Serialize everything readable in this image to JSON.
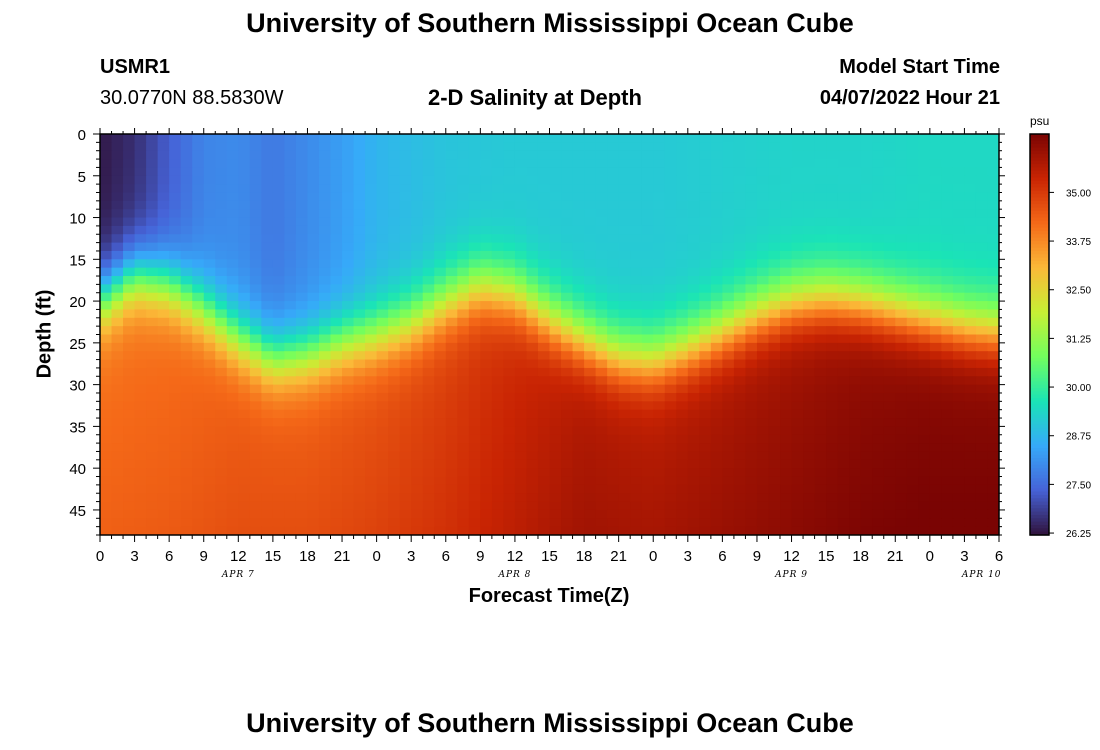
{
  "header": {
    "title": "University of Southern Mississippi Ocean Cube",
    "station_id": "USMR1",
    "location": "30.0770N  88.5830W",
    "plot_title": "2-D Salinity at Depth",
    "model_start_label": "Model Start Time",
    "model_start_value": "04/07/2022 Hour 21"
  },
  "footer": {
    "title": "University of Southern Mississippi Ocean Cube"
  },
  "chart_data": {
    "type": "heatmap",
    "title": "2-D Salinity at Depth",
    "xlabel": "Forecast Time(Z)",
    "ylabel": "Depth (ft)",
    "x_range_hours": [
      0,
      78
    ],
    "x_tick_labels": [
      "0",
      "3",
      "6",
      "9",
      "12",
      "15",
      "18",
      "21",
      "0",
      "3",
      "6",
      "9",
      "12",
      "15",
      "18",
      "21",
      "0",
      "3",
      "6",
      "9",
      "12",
      "15",
      "18",
      "21",
      "0",
      "3",
      "6"
    ],
    "date_labels": [
      {
        "label": "APR 7",
        "hour": 12
      },
      {
        "label": "APR 8",
        "hour": 36
      },
      {
        "label": "APR 9",
        "hour": 60
      },
      {
        "label": "APR 10",
        "hour": 76.5
      }
    ],
    "y_range_ft": [
      0,
      48
    ],
    "y_tick_labels": [
      "0",
      "5",
      "10",
      "15",
      "20",
      "25",
      "30",
      "35",
      "40",
      "45"
    ],
    "halocline_depth_ft": {
      "hours": [
        0,
        3,
        6,
        9,
        12,
        15,
        18,
        21,
        24,
        27,
        30,
        33,
        36,
        39,
        42,
        45,
        48,
        51,
        54,
        57,
        60,
        63,
        66,
        69,
        72,
        75,
        78
      ],
      "depth": [
        20.5,
        17.5,
        18.5,
        21.5,
        25,
        27.5,
        27,
        25.5,
        24.5,
        23,
        20.5,
        18.5,
        19.5,
        22.5,
        25,
        27,
        27.5,
        26,
        24,
        22,
        20.5,
        20,
        20.5,
        21.5,
        22.5,
        23.5,
        24
      ]
    },
    "surface_salinity_psu": {
      "hours": [
        0,
        3,
        6,
        9,
        12,
        15,
        18,
        21,
        24,
        30,
        36,
        42,
        48,
        54,
        60,
        66,
        72,
        78
      ],
      "values": [
        26.3,
        26.6,
        27.3,
        27.9,
        28.0,
        27.7,
        28.0,
        28.3,
        28.7,
        29.0,
        29.1,
        29.1,
        29.1,
        29.2,
        29.3,
        29.3,
        29.4,
        29.4
      ]
    },
    "bottom_salinity_psu": {
      "hours": [
        0,
        6,
        12,
        18,
        24,
        30,
        36,
        42,
        48,
        54,
        60,
        66,
        72,
        78
      ],
      "values": [
        34.0,
        34.1,
        34.3,
        34.3,
        34.5,
        34.8,
        35.2,
        35.6,
        35.5,
        35.7,
        35.9,
        36.1,
        36.2,
        36.2
      ]
    },
    "colorbar": {
      "unit": "psu",
      "min": 26.2,
      "max": 36.5,
      "tick_values": [
        26.25,
        27.5,
        28.75,
        30.0,
        31.25,
        32.5,
        33.75,
        35.0
      ],
      "tick_labels": [
        "26.25",
        "27.50",
        "28.75",
        "30.00",
        "31.25",
        "32.50",
        "33.75",
        "35.00"
      ],
      "colors": [
        "#30123b",
        "#4662d7",
        "#36aaf9",
        "#1ae4b6",
        "#72fe5e",
        "#c7ef34",
        "#fbb938",
        "#f56918",
        "#c92403",
        "#7a0403"
      ]
    }
  }
}
